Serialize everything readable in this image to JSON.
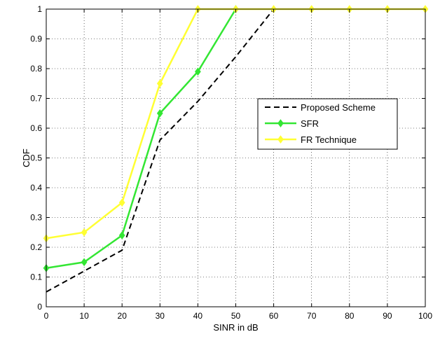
{
  "chart_data": {
    "type": "line",
    "title": "",
    "xlabel": "SINR in dB",
    "ylabel": "CDF",
    "xlim": [
      0,
      100
    ],
    "ylim": [
      0,
      1
    ],
    "xticks": [
      0,
      10,
      20,
      30,
      40,
      50,
      60,
      70,
      80,
      90,
      100
    ],
    "yticks": [
      0,
      0.1,
      0.2,
      0.3,
      0.4,
      0.5,
      0.6,
      0.7,
      0.8,
      0.9,
      1
    ],
    "grid": true,
    "legend_position": "center-right",
    "series": [
      {
        "name": "Proposed Scheme",
        "color": "#000000",
        "style": "dashed",
        "marker": "none",
        "x": [
          0,
          10,
          20,
          30,
          40,
          50,
          60
        ],
        "y": [
          0.05,
          0.12,
          0.19,
          0.56,
          0.69,
          0.84,
          1.0
        ]
      },
      {
        "name": "SFR",
        "color": "#33e633",
        "style": "solid",
        "marker": "diamond",
        "x": [
          0,
          10,
          20,
          30,
          40,
          50
        ],
        "y": [
          0.13,
          0.15,
          0.24,
          0.65,
          0.79,
          1.0
        ]
      },
      {
        "name": "FR Technique",
        "color": "#ffff33",
        "style": "solid",
        "marker": "diamond",
        "x": [
          0,
          10,
          20,
          30,
          40,
          50,
          60,
          70,
          80,
          90,
          100
        ],
        "y": [
          0.23,
          0.25,
          0.35,
          0.75,
          1.0,
          1.0,
          1.0,
          1.0,
          1.0,
          1.0,
          1.0
        ]
      }
    ]
  }
}
